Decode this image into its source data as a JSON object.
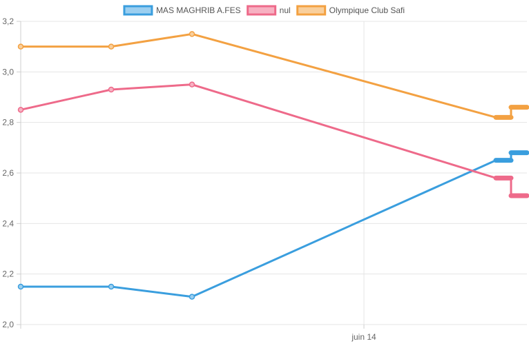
{
  "chart_data": {
    "type": "line",
    "title": "",
    "xlabel": "",
    "ylabel": "",
    "ylim": [
      2.0,
      3.2
    ],
    "y_ticks": [
      "2,0",
      "2,2",
      "2,4",
      "2,6",
      "2,8",
      "3,0",
      "3,2"
    ],
    "x_tick_label": "juin 14",
    "grid": true,
    "legend_position": "top",
    "series": [
      {
        "name": "MAS MAGHRIB A.FES",
        "color": "#3a9ede",
        "fill": "#9ccff0",
        "values": [
          2.15,
          2.15,
          2.11,
          2.65,
          2.65,
          2.68,
          2.68
        ]
      },
      {
        "name": "nul",
        "color": "#ee6a8a",
        "fill": "#f7b1c2",
        "values": [
          2.85,
          2.93,
          2.95,
          2.58,
          2.58,
          2.51,
          2.51
        ]
      },
      {
        "name": "Olympique Club Safi",
        "color": "#f3a142",
        "fill": "#f9cf9c",
        "values": [
          3.1,
          3.1,
          3.15,
          2.82,
          2.82,
          2.86,
          2.86
        ]
      }
    ]
  }
}
